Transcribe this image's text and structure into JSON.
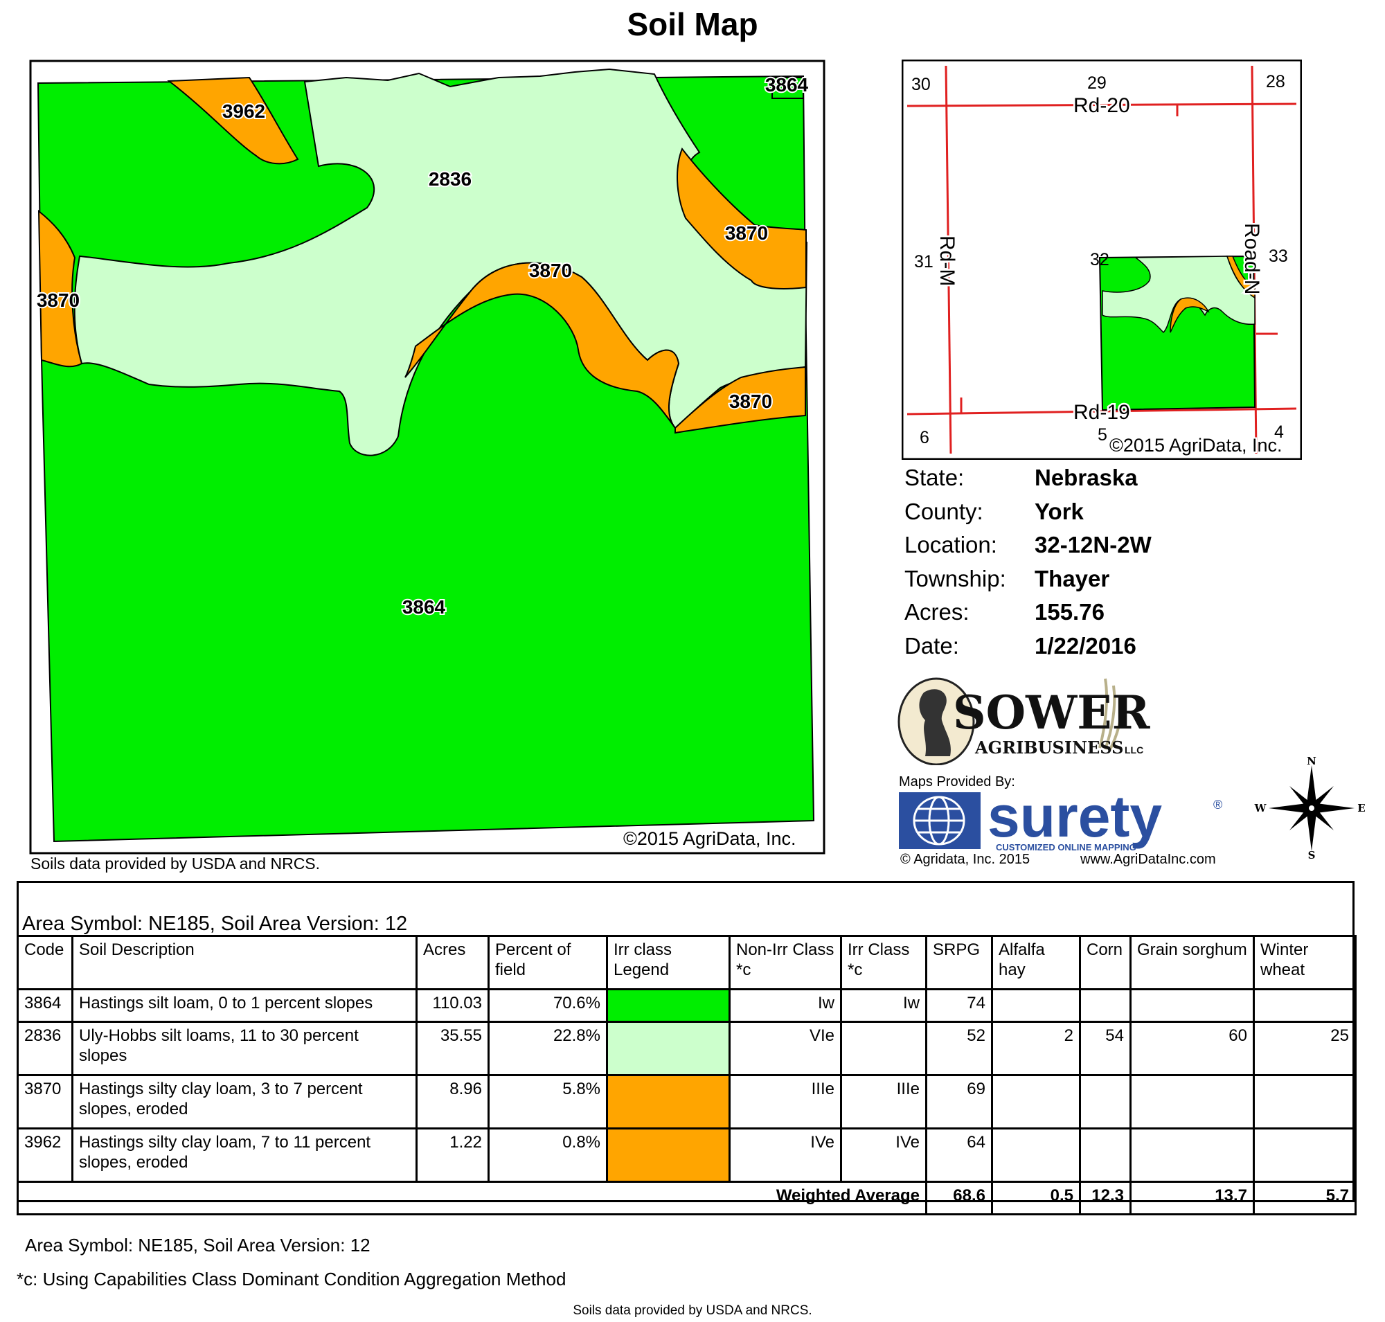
{
  "title": "Soil Map",
  "colors": {
    "3864": "#00ee00",
    "2836": "#ccffcc",
    "3870": "#ffa500",
    "3962": "#ffa500",
    "road": "#e02020"
  },
  "map": {
    "labels": {
      "north_3864": "3864",
      "north_3962": "3962",
      "center_2836": "2836",
      "east_3870_upper": "3870",
      "center_3870": "3870",
      "west_3870": "3870",
      "east_3870_lower": "3870",
      "main_3864": "3864"
    },
    "copyright": "©2015 AgriData, Inc.",
    "source": "Soils data provided by USDA and NRCS."
  },
  "locator": {
    "sections": [
      "30",
      "29",
      "28",
      "31",
      "32",
      "33",
      "6",
      "5",
      "4"
    ],
    "roads": {
      "rd20": "Rd-20",
      "rd19": "Rd-19",
      "rdm": "Rd-M",
      "roadn": "Road-N"
    },
    "copyright": "©2015 AgriData, Inc."
  },
  "info": [
    {
      "label": "State:",
      "value": "Nebraska"
    },
    {
      "label": "County:",
      "value": "York"
    },
    {
      "label": "Location:",
      "value": "32-12N-2W"
    },
    {
      "label": "Township:",
      "value": "Thayer"
    },
    {
      "label": "Acres:",
      "value": "155.76"
    },
    {
      "label": "Date:",
      "value": "1/22/2016"
    }
  ],
  "logos": {
    "sower_main": "SOWER",
    "sower_sub": "AGRIBUSINESS",
    "sower_llc": "LLC",
    "maps_provided": "Maps Provided By:",
    "surety": "surety",
    "surety_reg": "®",
    "surety_tag": "CUSTOMIZED ONLINE MAPPING",
    "agridata_copy": "© Agridata, Inc. 2015",
    "agridata_url": "www.AgriDataInc.com"
  },
  "compass": {
    "n": "N",
    "s": "S",
    "e": "E",
    "w": "W"
  },
  "table": {
    "area_title": "Area Symbol: NE185, Soil Area Version: 12",
    "headers": [
      "Code",
      "Soil Description",
      "Acres",
      "Percent of field",
      "Irr class Legend",
      "Non-Irr Class *c",
      "Irr Class *c",
      "SRPG",
      "Alfalfa hay",
      "Corn",
      "Grain sorghum",
      "Winter wheat"
    ],
    "rows": [
      {
        "code": "3864",
        "description": "Hastings silt loam, 0 to 1 percent slopes",
        "acres": "110.03",
        "percent": "70.6%",
        "nonirr": "Iw",
        "irr": "Iw",
        "srpg": "74",
        "alfalfa": "",
        "corn": "",
        "sorghum": "",
        "wheat": ""
      },
      {
        "code": "2836",
        "description": "Uly-Hobbs silt loams, 11 to 30 percent slopes",
        "acres": "35.55",
        "percent": "22.8%",
        "nonirr": "VIe",
        "irr": "",
        "srpg": "52",
        "alfalfa": "2",
        "corn": "54",
        "sorghum": "60",
        "wheat": "25"
      },
      {
        "code": "3870",
        "description": "Hastings silty clay loam, 3 to 7 percent slopes, eroded",
        "acres": "8.96",
        "percent": "5.8%",
        "nonirr": "IIIe",
        "irr": "IIIe",
        "srpg": "69",
        "alfalfa": "",
        "corn": "",
        "sorghum": "",
        "wheat": ""
      },
      {
        "code": "3962",
        "description": "Hastings silty clay loam, 7 to 11 percent slopes, eroded",
        "acres": "1.22",
        "percent": "0.8%",
        "nonirr": "IVe",
        "irr": "IVe",
        "srpg": "64",
        "alfalfa": "",
        "corn": "",
        "sorghum": "",
        "wheat": ""
      }
    ],
    "weighted": {
      "label": "Weighted Average",
      "srpg": "68.6",
      "alfalfa": "0.5",
      "corn": "12.3",
      "sorghum": "13.7",
      "wheat": "5.7"
    }
  },
  "footer": {
    "area": "Area Symbol: NE185, Soil Area Version: 12",
    "note": "*c:  Using Capabilities Class Dominant Condition Aggregation Method",
    "source": "Soils data provided by USDA and NRCS."
  }
}
